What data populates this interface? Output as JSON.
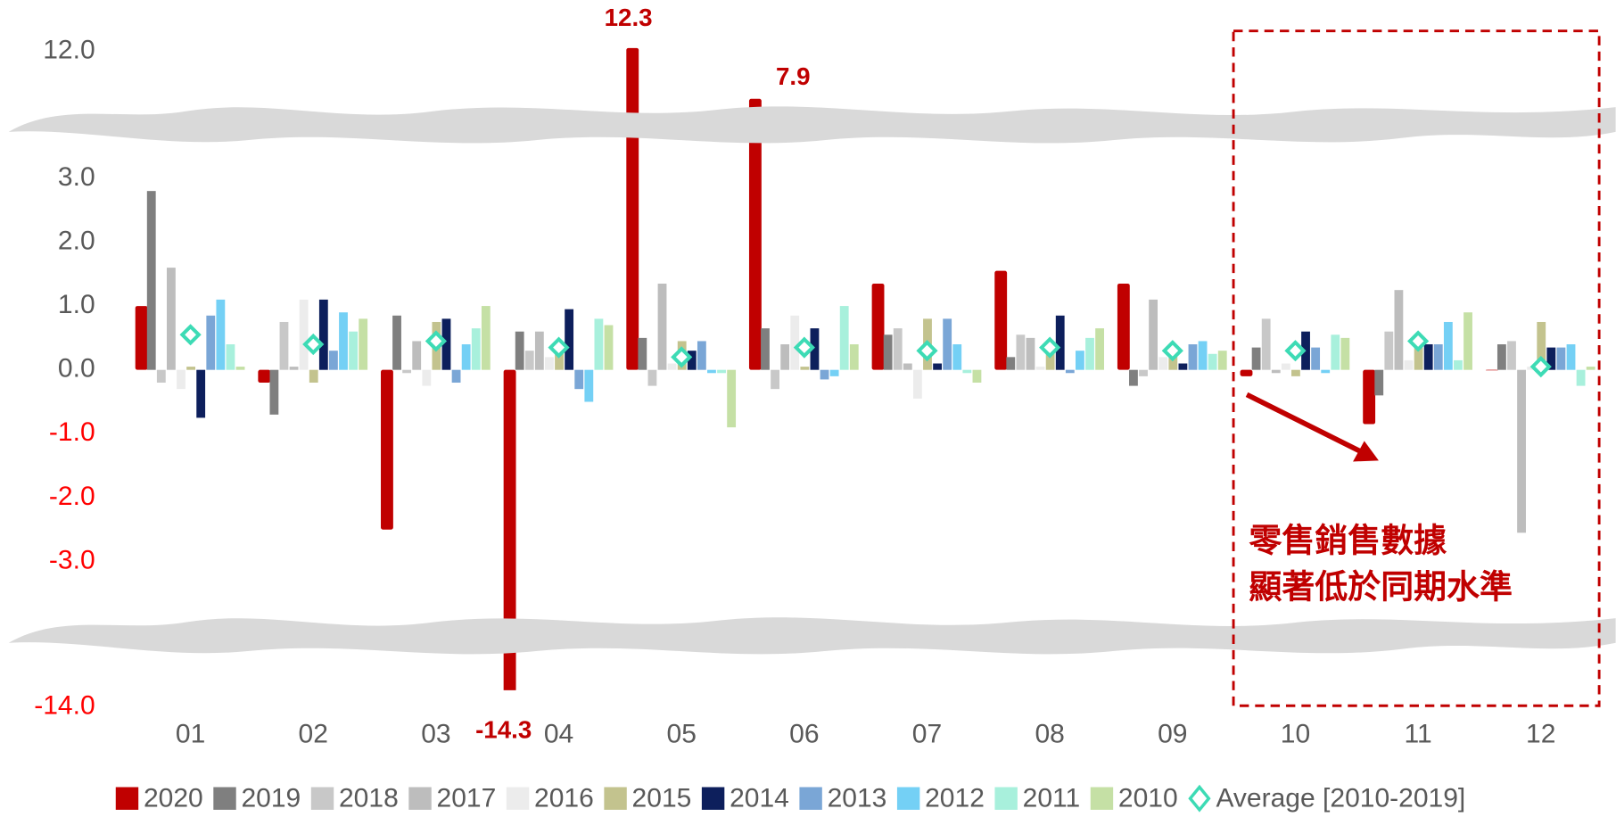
{
  "chart_data": {
    "type": "bar",
    "categories": [
      "01",
      "02",
      "03",
      "04",
      "05",
      "06",
      "07",
      "08",
      "09",
      "10",
      "11",
      "12"
    ],
    "series": [
      {
        "name": "2020",
        "color": "#c00000",
        "values": [
          1.0,
          -0.2,
          -2.5,
          -14.3,
          12.3,
          7.9,
          1.35,
          1.55,
          1.35,
          -0.1,
          -0.85,
          0
        ],
        "value_labels": [
          null,
          null,
          null,
          "-14.3",
          "12.3",
          "7.9",
          null,
          null,
          null,
          null,
          null,
          null
        ]
      },
      {
        "name": "2019",
        "color": "#7f7f7f",
        "values": [
          2.8,
          -0.7,
          0.85,
          0.6,
          0.5,
          0.65,
          0.55,
          0.2,
          -0.25,
          0.35,
          -0.4,
          0.4
        ]
      },
      {
        "name": "2018",
        "color": "#c8c8c8",
        "values": [
          -0.2,
          0.75,
          -0.05,
          0.3,
          -0.25,
          -0.3,
          0.65,
          0.55,
          -0.1,
          0.8,
          0.6,
          0.45
        ]
      },
      {
        "name": "2017",
        "color": "#bdbdbd",
        "values": [
          1.6,
          0.05,
          0.45,
          0.6,
          1.35,
          0.4,
          0.1,
          0.5,
          1.1,
          -0.05,
          1.25,
          -2.55
        ]
      },
      {
        "name": "2016",
        "color": "#ececec",
        "values": [
          -0.3,
          1.1,
          -0.25,
          0.2,
          0.1,
          0.85,
          -0.45,
          0.05,
          0.2,
          0.1,
          0.15,
          0.05
        ]
      },
      {
        "name": "2015",
        "color": "#c3c38e",
        "values": [
          0.05,
          -0.2,
          0.75,
          0.4,
          0.45,
          0.05,
          0.8,
          0.3,
          0.3,
          -0.1,
          0.35,
          0.75
        ]
      },
      {
        "name": "2014",
        "color": "#0d1f5c",
        "values": [
          -0.75,
          1.1,
          0.8,
          0.95,
          0.3,
          0.65,
          0.1,
          0.85,
          0.1,
          0.6,
          0.4,
          0.35
        ]
      },
      {
        "name": "2013",
        "color": "#7aa6d6",
        "values": [
          0.85,
          0.3,
          -0.2,
          -0.3,
          0.45,
          -0.15,
          0.8,
          -0.05,
          0.4,
          0.35,
          0.4,
          0.35
        ]
      },
      {
        "name": "2012",
        "color": "#74d0f5",
        "values": [
          1.1,
          0.9,
          0.4,
          -0.5,
          -0.05,
          -0.1,
          0.4,
          0.3,
          0.45,
          -0.05,
          0.75,
          0.4
        ]
      },
      {
        "name": "2011",
        "color": "#a8f0dc",
        "values": [
          0.4,
          0.6,
          0.65,
          0.8,
          -0.05,
          1.0,
          -0.05,
          0.5,
          0.25,
          0.55,
          0.15,
          -0.25
        ]
      },
      {
        "name": "2010",
        "color": "#c5e0a5",
        "values": [
          0.05,
          0.8,
          1.0,
          0.7,
          -0.9,
          0.4,
          -0.2,
          0.65,
          0.3,
          0.5,
          0.9,
          0.05
        ]
      },
      {
        "name": "Average [2010-2019]",
        "color": "#3ddbb5",
        "marker": "diamond",
        "values": [
          0.55,
          0.4,
          0.45,
          0.35,
          0.2,
          0.35,
          0.3,
          0.35,
          0.3,
          0.3,
          0.45,
          0.05
        ]
      }
    ],
    "yticks": [
      {
        "value": 12,
        "label": "12.0"
      },
      {
        "value": 3,
        "label": "3.0"
      },
      {
        "value": 2,
        "label": "2.0"
      },
      {
        "value": 1,
        "label": "1.0"
      },
      {
        "value": 0,
        "label": "0.0"
      },
      {
        "value": -1,
        "label": "-1.0"
      },
      {
        "value": -2,
        "label": "-2.0"
      },
      {
        "value": -3,
        "label": "-3.0"
      },
      {
        "value": -14,
        "label": "-14.0"
      }
    ],
    "negative_tick_color": "#ff0000",
    "annotation": [
      "零售銷售數據",
      "顯著低於同期水準"
    ],
    "annotation_color": "#c00000",
    "broken_axis": true
  }
}
